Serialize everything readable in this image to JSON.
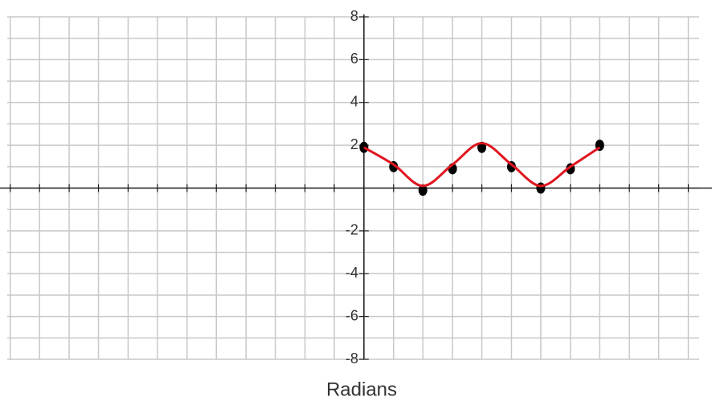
{
  "chart_data": {
    "type": "line",
    "x_label": "Radians",
    "x": [
      0,
      0.79,
      1.57,
      2.36,
      3.14,
      3.93,
      4.71,
      5.5,
      6.28
    ],
    "series": [
      {
        "color": "#000000",
        "values": [
          1.9,
          1,
          -0.1,
          0.9,
          1.9,
          1,
          0,
          0.9,
          2
        ],
        "marker": "point"
      },
      {
        "color": "#e0141e",
        "values": [
          1.9,
          1.1,
          0.1,
          1.1,
          2.1,
          1.1,
          0.1,
          1.0,
          1.9
        ],
        "marker": "none"
      }
    ],
    "xlim": [
      -9.5,
      8.65
    ],
    "xticks": [
      -9.42,
      -8.64,
      -7.85,
      -7.07,
      -6.28,
      -5.5,
      -4.71,
      -3.93,
      -3.14,
      -2.36,
      -1.57,
      -0.79,
      0,
      0.79,
      1.57,
      2.36,
      3.14,
      3.93,
      4.71,
      5.5,
      6.28,
      7.07,
      7.85,
      8.64
    ],
    "ylim": [
      -8,
      8
    ],
    "yticks": [
      -8,
      -6,
      -4,
      -2,
      2,
      4,
      6,
      8
    ],
    "grid": true
  }
}
